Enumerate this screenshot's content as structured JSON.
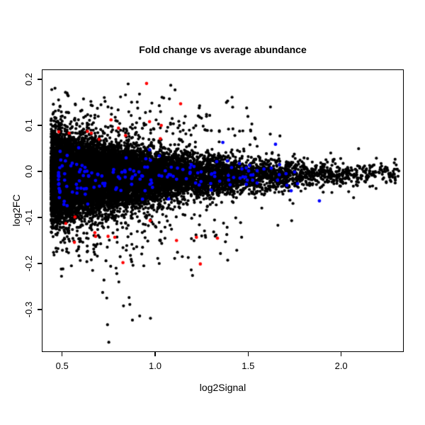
{
  "title": "Fold change vs average abundance",
  "colors": {
    "background": "#FFFFFF",
    "axis": "#000000",
    "point_black": "#000000",
    "point_blue": "#0000FF",
    "point_red": "#FF0000"
  },
  "chart_data": {
    "type": "scatter",
    "title": "Fold change vs average abundance",
    "xlabel": "log2Signal",
    "ylabel": "log2FC",
    "xlim": [
      0.3945,
      2.3327
    ],
    "ylim": [
      -0.3908,
      0.22
    ],
    "grid": false,
    "legend": null,
    "xticks": {
      "values": [
        0.5,
        1.0,
        1.5,
        2.0
      ],
      "labels": [
        "0.5",
        "1.0",
        "1.5",
        "2.0"
      ]
    },
    "yticks": {
      "values": [
        0.2,
        0.1,
        0.0,
        -0.1,
        -0.2,
        -0.3
      ],
      "labels": [
        "0.2",
        "0.1",
        "0.0",
        "-0.1",
        "-0.2",
        "-0.3"
      ]
    },
    "shape_note": "MA-plot style wedge: dense black mass from x=0.44 tapering to a point near x=2.31,y=-0.01; vertical spread about +0.07/-0.10 at x=0.5 narrowing to +/-0.02 at x=2.3; sparse lower tail of points down to y=-0.37 for x between 0.55 and 1.45; sparse upper scatter up to y=0.2 for x below 1.6",
    "series": [
      {
        "name": "background-points",
        "color": "#000000",
        "marker_radius": 2.1,
        "generated": {
          "kind": "band",
          "n": 15000,
          "seed": 20240601,
          "x_min": 0.44,
          "x_max": 2.31,
          "x_lambda": 0.4,
          "mu_a": -0.016,
          "mu_b": 0.005,
          "sig_x0": 0.44,
          "sig_base": 0.041,
          "sig_decay": 1.05,
          "sig_floor": 0.004,
          "fringe_prob": 0.05,
          "fringe_scale": 1.65,
          "z_clamp_lo": -5.0,
          "z_clamp_hi": 4.4,
          "cap_y0": 0.21,
          "cap_x0": 1.2,
          "cap_slope": 0.075
        },
        "clouds": [
          {
            "n": 110,
            "seed": 777,
            "x_min": 0.52,
            "x_span": 0.95,
            "x_pow": 1.25,
            "y_start": -0.095,
            "y_span": -0.1,
            "y_pow": 1.5
          },
          {
            "n": 85,
            "seed": 555,
            "x_min": 0.48,
            "x_span": 1.05,
            "x_pow": 1.35,
            "y_start": 0.088,
            "y_span": 0.075,
            "y_pow": 1.8
          }
        ],
        "outliers": [
          [
            0.855,
            0.19
          ],
          [
            0.916,
            0.168
          ],
          [
            1.084,
            0.187
          ],
          [
            1.107,
            0.177
          ],
          [
            1.037,
            0.161
          ],
          [
            1.39,
            0.153
          ],
          [
            1.62,
            0.14
          ],
          [
            0.656,
            0.144
          ],
          [
            0.731,
            0.152
          ],
          [
            1.52,
            0.103
          ],
          [
            1.619,
            0.081
          ],
          [
            1.671,
            0.077
          ],
          [
            1.944,
            0.04
          ],
          [
            2.153,
            0.013
          ],
          [
            0.55,
            -0.205
          ],
          [
            0.633,
            -0.196
          ],
          [
            0.664,
            -0.215
          ],
          [
            0.871,
            -0.191
          ],
          [
            0.874,
            -0.196
          ],
          [
            0.881,
            -0.204
          ],
          [
            0.761,
            -0.206
          ],
          [
            0.79,
            -0.21
          ],
          [
            0.794,
            -0.222
          ],
          [
            0.725,
            -0.236
          ],
          [
            0.805,
            -0.24
          ],
          [
            0.939,
            -0.205
          ],
          [
            1.014,
            -0.189
          ],
          [
            1.022,
            -0.2
          ],
          [
            1.105,
            -0.189
          ],
          [
            1.146,
            -0.185
          ],
          [
            1.178,
            -0.187
          ],
          [
            1.194,
            -0.214
          ],
          [
            1.201,
            -0.226
          ],
          [
            0.718,
            -0.263
          ],
          [
            0.74,
            -0.275
          ],
          [
            0.86,
            -0.274
          ],
          [
            0.864,
            -0.289
          ],
          [
            0.83,
            -0.292
          ],
          [
            0.878,
            -0.323
          ],
          [
            0.917,
            -0.314
          ],
          [
            0.975,
            -0.319
          ],
          [
            0.744,
            -0.333
          ],
          [
            0.751,
            -0.371
          ],
          [
            2.264,
            -0.019
          ],
          [
            2.229,
            -0.014
          ],
          [
            2.286,
            0.005
          ],
          [
            1.66,
            -0.117
          ],
          [
            1.734,
            -0.107
          ],
          [
            2.067,
            -0.057
          ],
          [
            2.268,
            -0.022
          ]
        ]
      },
      {
        "name": "highlight-blue",
        "color": "#0000FF",
        "marker_radius": 2.4,
        "generated": {
          "kind": "band",
          "n": 150,
          "seed": 4242,
          "x_min": 0.48,
          "x_max": 1.78,
          "x_pow": 1.6,
          "mu_a": -0.016,
          "mu_b": 0.005,
          "sig_x0": 0.44,
          "sig_base": 0.041,
          "sig_decay": 1.05,
          "sig_floor": 0.004,
          "sigma_scale": 0.85,
          "y_clamp": 0.08
        },
        "points": [
          [
            1.364,
            0.063
          ],
          [
            1.647,
            0.059
          ],
          [
            1.731,
            -0.042
          ],
          [
            1.883,
            -0.064
          ],
          [
            1.508,
            0.013
          ],
          [
            1.453,
            0.017
          ]
        ]
      },
      {
        "name": "highlight-red",
        "color": "#FF0000",
        "marker_radius": 2.3,
        "points": [
          [
            0.954,
            0.191
          ],
          [
            1.137,
            0.147
          ],
          [
            0.482,
            0.086
          ],
          [
            0.538,
            0.083
          ],
          [
            0.636,
            0.087
          ],
          [
            0.657,
            0.083
          ],
          [
            0.763,
            0.112
          ],
          [
            0.803,
            0.094
          ],
          [
            0.841,
            0.078
          ],
          [
            0.699,
            0.07
          ],
          [
            0.97,
            0.108
          ],
          [
            1.033,
            0.1
          ],
          [
            1.028,
            0.071
          ],
          [
            0.52,
            -0.113
          ],
          [
            0.569,
            -0.099
          ],
          [
            0.566,
            -0.154
          ],
          [
            0.676,
            -0.133
          ],
          [
            0.68,
            -0.141
          ],
          [
            0.747,
            -0.141
          ],
          [
            0.783,
            -0.143
          ],
          [
            0.827,
            -0.198
          ],
          [
            0.973,
            -0.107
          ],
          [
            1.115,
            -0.15
          ],
          [
            1.222,
            -0.143
          ],
          [
            1.243,
            -0.201
          ],
          [
            1.335,
            -0.145
          ]
        ]
      }
    ]
  }
}
